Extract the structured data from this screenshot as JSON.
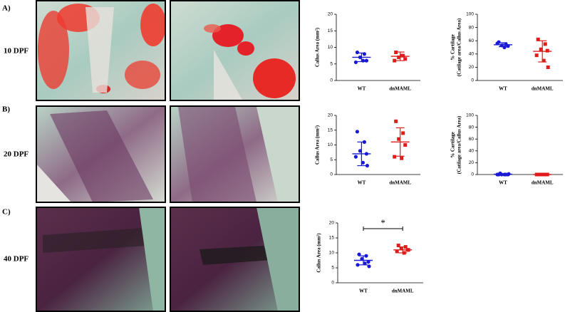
{
  "panels": [
    {
      "label": "A)",
      "stage": "10 DPF"
    },
    {
      "label": "B)",
      "stage": "20 DPF"
    },
    {
      "label": "C)",
      "stage": "40 DPF"
    }
  ],
  "chart_data": [
    {
      "type": "scatter",
      "ylabel": "Callus Area (mm²)",
      "categories": [
        "WT",
        "dnMAML"
      ],
      "ylim": [
        0,
        20
      ],
      "yticks": [
        0,
        5,
        10,
        15,
        20
      ],
      "series": [
        {
          "name": "WT",
          "color": "#1a1ad6",
          "marker": "circle",
          "values": [
            8.5,
            8,
            7,
            6,
            5.5,
            6
          ],
          "mean": 7,
          "sd": 1.3
        },
        {
          "name": "dnMAML",
          "color": "#e01b1b",
          "marker": "square",
          "values": [
            8.5,
            7.5,
            7,
            6.5,
            6,
            7.5
          ],
          "mean": 7.3,
          "sd": 1.3
        }
      ]
    },
    {
      "type": "scatter",
      "ylabel": [
        "% Cartilage",
        "(Catilage area/Callus Area)"
      ],
      "categories": [
        "WT",
        "dnMAML"
      ],
      "ylim": [
        0,
        100
      ],
      "yticks": [
        0,
        20,
        40,
        60,
        80,
        100
      ],
      "series": [
        {
          "name": "WT",
          "color": "#1a1ad6",
          "marker": "circle",
          "values": [
            58,
            55,
            53,
            52,
            56,
            50
          ],
          "mean": 54,
          "sd": 3
        },
        {
          "name": "dnMAML",
          "color": "#e01b1b",
          "marker": "square",
          "values": [
            62,
            55,
            47,
            45,
            38,
            30,
            20
          ],
          "mean": 44,
          "sd": 16
        }
      ]
    },
    {
      "type": "scatter",
      "ylabel": "Callus Area (mm²)",
      "categories": [
        "WT",
        "dnMAML"
      ],
      "ylim": [
        0,
        20
      ],
      "yticks": [
        0,
        5,
        10,
        15,
        20
      ],
      "series": [
        {
          "name": "WT",
          "color": "#1a1ad6",
          "marker": "circle",
          "values": [
            14.5,
            11,
            8,
            7,
            6,
            4,
            3
          ],
          "mean": 7,
          "sd": 4
        },
        {
          "name": "dnMAML",
          "color": "#e01b1b",
          "marker": "square",
          "values": [
            18,
            14,
            12,
            10,
            6,
            5.5
          ],
          "mean": 11,
          "sd": 4.8
        }
      ]
    },
    {
      "type": "scatter",
      "ylabel": [
        "% Cartilage",
        "(Catilage area/Callus Area)"
      ],
      "categories": [
        "WT",
        "dnMAML"
      ],
      "ylim": [
        0,
        100
      ],
      "yticks": [
        0,
        20,
        40,
        60,
        80,
        100
      ],
      "series": [
        {
          "name": "WT",
          "color": "#1a1ad6",
          "marker": "circle",
          "values": [
            0,
            0,
            0,
            0,
            0,
            0,
            1,
            2
          ],
          "mean": 0.5,
          "sd": 0.8
        },
        {
          "name": "dnMAML",
          "color": "#e01b1b",
          "marker": "square",
          "values": [
            0,
            0,
            0,
            0,
            0,
            0
          ],
          "mean": 0,
          "sd": 0
        }
      ]
    },
    {
      "type": "scatter",
      "ylabel": "Callus Area (mm²)",
      "categories": [
        "WT",
        "dnMAML"
      ],
      "ylim": [
        0,
        20
      ],
      "yticks": [
        0,
        5,
        10,
        15,
        20
      ],
      "significance": "*",
      "series": [
        {
          "name": "WT",
          "color": "#1a1ad6",
          "marker": "circle",
          "values": [
            9.5,
            9,
            8,
            7,
            6,
            6.5,
            5.5
          ],
          "mean": 7.5,
          "sd": 1.5
        },
        {
          "name": "dnMAML",
          "color": "#e01b1b",
          "marker": "square",
          "values": [
            12.5,
            12,
            11.5,
            11,
            10.5,
            10,
            11
          ],
          "mean": 11,
          "sd": 1
        }
      ]
    }
  ]
}
